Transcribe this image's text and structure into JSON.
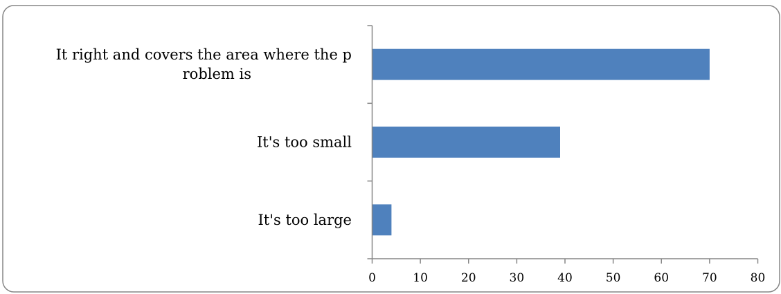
{
  "chart_data": {
    "type": "bar",
    "orientation": "horizontal",
    "categories": [
      "It right and covers the area where the problem is",
      "It's too small",
      "It's too large"
    ],
    "category_label_lines": [
      [
        "It right and covers the area where the p",
        "roblem is"
      ],
      [
        "It's too small"
      ],
      [
        "It's too large"
      ]
    ],
    "values": [
      70,
      39,
      4
    ],
    "xlim": [
      0,
      80
    ],
    "x_ticks": [
      0,
      10,
      20,
      30,
      40,
      50,
      60,
      70,
      80
    ],
    "x_tick_labels": [
      "0",
      "10",
      "20",
      "30",
      "40",
      "50",
      "60",
      "70",
      "80"
    ],
    "grid": false,
    "legend": "none",
    "colors": {
      "bar": "#4f81bd",
      "axis": "#868686",
      "border": "#868686"
    }
  }
}
